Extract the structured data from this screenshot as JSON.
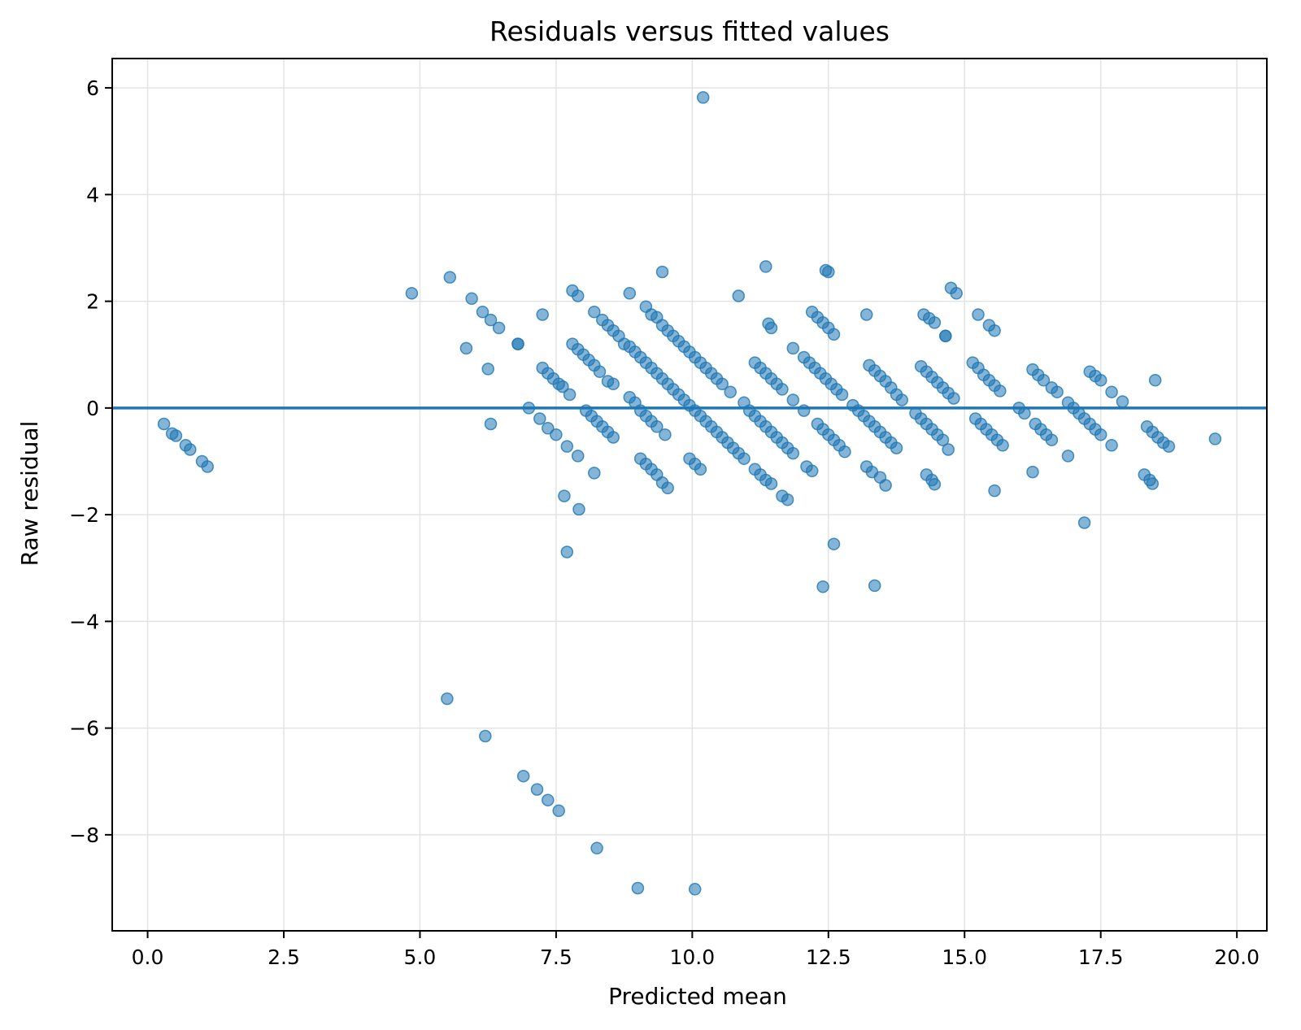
{
  "chart_data": {
    "type": "scatter",
    "title": "Residuals versus fitted values",
    "xlabel": "Predicted mean",
    "ylabel": "Raw residual",
    "xlim": [
      -0.65,
      20.55
    ],
    "ylim": [
      -9.8,
      6.55
    ],
    "x_ticks": [
      "0.0",
      "2.5",
      "5.0",
      "7.5",
      "10.0",
      "12.5",
      "15.0",
      "17.5",
      "20.0"
    ],
    "y_ticks": [
      "6",
      "4",
      "2",
      "0",
      "−2",
      "−4",
      "−6",
      "−8"
    ],
    "x_tick_values": [
      0,
      2.5,
      5,
      7.5,
      10,
      12.5,
      15,
      17.5,
      20
    ],
    "y_tick_values": [
      6,
      4,
      2,
      0,
      -2,
      -4,
      -6,
      -8
    ],
    "grid": true,
    "reference_line": {
      "y": 0,
      "color": "#1f77b4"
    },
    "marker_color": "#1f77b4",
    "marker_alpha": 0.55,
    "points": [
      [
        0.3,
        -0.3
      ],
      [
        0.45,
        -0.48
      ],
      [
        0.52,
        -0.52
      ],
      [
        0.7,
        -0.7
      ],
      [
        0.78,
        -0.78
      ],
      [
        1.0,
        -1.0
      ],
      [
        1.1,
        -1.1
      ],
      [
        4.85,
        2.15
      ],
      [
        5.55,
        2.45
      ],
      [
        5.85,
        1.12
      ],
      [
        5.95,
        2.05
      ],
      [
        6.15,
        1.8
      ],
      [
        6.3,
        1.65
      ],
      [
        6.45,
        1.5
      ],
      [
        6.25,
        0.73
      ],
      [
        6.3,
        -0.3
      ],
      [
        6.8,
        1.2
      ],
      [
        6.8,
        1.2
      ],
      [
        7.25,
        1.75
      ],
      [
        7.0,
        0.0
      ],
      [
        7.2,
        -0.2
      ],
      [
        7.35,
        -0.38
      ],
      [
        7.5,
        -0.5
      ],
      [
        7.7,
        -0.72
      ],
      [
        7.9,
        -0.9
      ],
      [
        7.25,
        0.75
      ],
      [
        7.35,
        0.65
      ],
      [
        7.45,
        0.55
      ],
      [
        7.55,
        0.45
      ],
      [
        7.62,
        0.4
      ],
      [
        7.75,
        0.25
      ],
      [
        7.65,
        -1.65
      ],
      [
        7.7,
        -2.7
      ],
      [
        7.92,
        -1.9
      ],
      [
        7.8,
        2.2
      ],
      [
        7.9,
        2.1
      ],
      [
        7.8,
        1.2
      ],
      [
        7.9,
        1.1
      ],
      [
        8.0,
        1.0
      ],
      [
        8.1,
        0.9
      ],
      [
        8.2,
        0.8
      ],
      [
        8.3,
        0.68
      ],
      [
        8.45,
        0.5
      ],
      [
        8.55,
        0.45
      ],
      [
        8.05,
        -0.05
      ],
      [
        8.15,
        -0.15
      ],
      [
        8.25,
        -0.25
      ],
      [
        8.35,
        -0.35
      ],
      [
        8.45,
        -0.45
      ],
      [
        8.55,
        -0.55
      ],
      [
        8.2,
        -1.22
      ],
      [
        8.2,
        1.8
      ],
      [
        8.35,
        1.65
      ],
      [
        8.45,
        1.55
      ],
      [
        8.55,
        1.45
      ],
      [
        8.65,
        1.35
      ],
      [
        8.75,
        1.2
      ],
      [
        8.85,
        1.15
      ],
      [
        8.95,
        1.05
      ],
      [
        9.05,
        0.95
      ],
      [
        9.15,
        0.85
      ],
      [
        8.85,
        2.15
      ],
      [
        8.85,
        0.2
      ],
      [
        8.95,
        0.1
      ],
      [
        9.05,
        -0.05
      ],
      [
        9.15,
        -0.15
      ],
      [
        9.25,
        -0.25
      ],
      [
        9.35,
        -0.35
      ],
      [
        9.5,
        -0.5
      ],
      [
        9.15,
        1.9
      ],
      [
        9.25,
        1.75
      ],
      [
        9.35,
        1.7
      ],
      [
        9.45,
        1.55
      ],
      [
        9.55,
        1.45
      ],
      [
        9.65,
        1.35
      ],
      [
        9.75,
        1.25
      ],
      [
        9.85,
        1.15
      ],
      [
        9.95,
        1.05
      ],
      [
        9.05,
        -0.95
      ],
      [
        9.15,
        -1.05
      ],
      [
        9.25,
        -1.15
      ],
      [
        9.35,
        -1.25
      ],
      [
        9.45,
        -1.4
      ],
      [
        9.55,
        -1.5
      ],
      [
        9.45,
        2.55
      ],
      [
        9.25,
        0.75
      ],
      [
        9.35,
        0.65
      ],
      [
        9.45,
        0.55
      ],
      [
        9.55,
        0.45
      ],
      [
        9.65,
        0.35
      ],
      [
        9.75,
        0.25
      ],
      [
        9.85,
        0.15
      ],
      [
        9.95,
        0.05
      ],
      [
        10.05,
        -0.05
      ],
      [
        10.15,
        -0.15
      ],
      [
        10.25,
        -0.25
      ],
      [
        10.35,
        -0.35
      ],
      [
        10.45,
        -0.45
      ],
      [
        10.55,
        -0.55
      ],
      [
        10.65,
        -0.65
      ],
      [
        10.75,
        -0.75
      ],
      [
        10.85,
        -0.85
      ],
      [
        10.95,
        -0.95
      ],
      [
        9.95,
        -0.95
      ],
      [
        10.05,
        -1.05
      ],
      [
        10.15,
        -1.15
      ],
      [
        10.2,
        5.82
      ],
      [
        10.05,
        0.95
      ],
      [
        10.15,
        0.85
      ],
      [
        10.25,
        0.75
      ],
      [
        10.35,
        0.65
      ],
      [
        10.45,
        0.55
      ],
      [
        10.55,
        0.45
      ],
      [
        10.7,
        0.3
      ],
      [
        10.85,
        2.1
      ],
      [
        10.95,
        0.1
      ],
      [
        11.05,
        -0.05
      ],
      [
        11.15,
        -0.15
      ],
      [
        11.25,
        -0.25
      ],
      [
        11.35,
        -0.35
      ],
      [
        11.45,
        -0.45
      ],
      [
        11.55,
        -0.55
      ],
      [
        11.65,
        -0.65
      ],
      [
        11.75,
        -0.75
      ],
      [
        11.85,
        -0.85
      ],
      [
        11.15,
        0.85
      ],
      [
        11.25,
        0.75
      ],
      [
        11.35,
        0.65
      ],
      [
        11.45,
        0.55
      ],
      [
        11.55,
        0.45
      ],
      [
        11.65,
        0.35
      ],
      [
        11.35,
        2.65
      ],
      [
        11.4,
        1.58
      ],
      [
        11.45,
        1.5
      ],
      [
        11.15,
        -1.15
      ],
      [
        11.25,
        -1.25
      ],
      [
        11.35,
        -1.35
      ],
      [
        11.45,
        -1.42
      ],
      [
        11.65,
        -1.65
      ],
      [
        11.75,
        -1.72
      ],
      [
        11.85,
        1.12
      ],
      [
        11.85,
        0.15
      ],
      [
        12.05,
        0.95
      ],
      [
        12.15,
        0.85
      ],
      [
        12.25,
        0.75
      ],
      [
        12.35,
        0.65
      ],
      [
        12.45,
        0.55
      ],
      [
        12.55,
        0.45
      ],
      [
        12.65,
        0.35
      ],
      [
        12.75,
        0.25
      ],
      [
        12.05,
        -0.05
      ],
      [
        12.2,
        1.8
      ],
      [
        12.3,
        1.7
      ],
      [
        12.4,
        1.6
      ],
      [
        12.5,
        1.5
      ],
      [
        12.6,
        1.38
      ],
      [
        12.45,
        2.58
      ],
      [
        12.5,
        2.55
      ],
      [
        12.1,
        -1.1
      ],
      [
        12.2,
        -1.18
      ],
      [
        12.3,
        -0.3
      ],
      [
        12.4,
        -0.4
      ],
      [
        12.5,
        -0.5
      ],
      [
        12.6,
        -0.6
      ],
      [
        12.7,
        -0.7
      ],
      [
        12.8,
        -0.82
      ],
      [
        12.4,
        -3.35
      ],
      [
        12.6,
        -2.55
      ],
      [
        12.95,
        0.05
      ],
      [
        13.05,
        -0.05
      ],
      [
        13.15,
        -0.15
      ],
      [
        13.25,
        -0.25
      ],
      [
        13.35,
        -0.35
      ],
      [
        13.45,
        -0.45
      ],
      [
        13.55,
        -0.55
      ],
      [
        13.65,
        -0.65
      ],
      [
        13.75,
        -0.75
      ],
      [
        13.2,
        1.75
      ],
      [
        13.25,
        0.8
      ],
      [
        13.35,
        0.7
      ],
      [
        13.45,
        0.6
      ],
      [
        13.55,
        0.5
      ],
      [
        13.65,
        0.38
      ],
      [
        13.75,
        0.25
      ],
      [
        13.85,
        0.15
      ],
      [
        13.2,
        -1.1
      ],
      [
        13.3,
        -1.2
      ],
      [
        13.45,
        -1.3
      ],
      [
        13.55,
        -1.45
      ],
      [
        13.35,
        -3.33
      ],
      [
        14.1,
        -0.1
      ],
      [
        14.2,
        -0.2
      ],
      [
        14.3,
        -0.3
      ],
      [
        14.4,
        -0.4
      ],
      [
        14.5,
        -0.5
      ],
      [
        14.6,
        -0.6
      ],
      [
        14.7,
        -0.78
      ],
      [
        14.2,
        0.78
      ],
      [
        14.3,
        0.68
      ],
      [
        14.4,
        0.58
      ],
      [
        14.5,
        0.48
      ],
      [
        14.6,
        0.38
      ],
      [
        14.7,
        0.28
      ],
      [
        14.8,
        0.18
      ],
      [
        14.25,
        1.75
      ],
      [
        14.35,
        1.68
      ],
      [
        14.45,
        1.6
      ],
      [
        14.65,
        1.35
      ],
      [
        14.65,
        1.35
      ],
      [
        14.75,
        2.25
      ],
      [
        14.85,
        2.15
      ],
      [
        14.3,
        -1.25
      ],
      [
        14.4,
        -1.35
      ],
      [
        14.45,
        -1.43
      ],
      [
        15.15,
        0.85
      ],
      [
        15.25,
        0.75
      ],
      [
        15.35,
        0.62
      ],
      [
        15.45,
        0.52
      ],
      [
        15.55,
        0.42
      ],
      [
        15.65,
        0.32
      ],
      [
        15.25,
        1.75
      ],
      [
        15.45,
        1.55
      ],
      [
        15.55,
        1.45
      ],
      [
        15.2,
        -0.2
      ],
      [
        15.3,
        -0.3
      ],
      [
        15.4,
        -0.4
      ],
      [
        15.5,
        -0.5
      ],
      [
        15.6,
        -0.6
      ],
      [
        15.7,
        -0.7
      ],
      [
        15.55,
        -1.55
      ],
      [
        16.0,
        0.0
      ],
      [
        16.1,
        -0.1
      ],
      [
        16.25,
        0.72
      ],
      [
        16.35,
        0.62
      ],
      [
        16.45,
        0.52
      ],
      [
        16.6,
        0.38
      ],
      [
        16.7,
        0.3
      ],
      [
        16.3,
        -0.3
      ],
      [
        16.4,
        -0.4
      ],
      [
        16.5,
        -0.5
      ],
      [
        16.6,
        -0.6
      ],
      [
        16.25,
        -1.2
      ],
      [
        16.9,
        0.1
      ],
      [
        17.0,
        0.0
      ],
      [
        17.1,
        -0.1
      ],
      [
        17.2,
        -0.2
      ],
      [
        17.3,
        -0.3
      ],
      [
        17.4,
        -0.4
      ],
      [
        17.5,
        -0.5
      ],
      [
        17.7,
        -0.7
      ],
      [
        16.9,
        -0.9
      ],
      [
        17.2,
        -2.15
      ],
      [
        17.3,
        0.68
      ],
      [
        17.4,
        0.6
      ],
      [
        17.5,
        0.52
      ],
      [
        17.7,
        0.3
      ],
      [
        17.9,
        0.12
      ],
      [
        18.3,
        -1.25
      ],
      [
        18.4,
        -1.35
      ],
      [
        18.45,
        -1.42
      ],
      [
        18.35,
        -0.35
      ],
      [
        18.45,
        -0.45
      ],
      [
        18.55,
        -0.55
      ],
      [
        18.65,
        -0.65
      ],
      [
        18.75,
        -0.72
      ],
      [
        18.5,
        0.52
      ],
      [
        19.6,
        -0.58
      ],
      [
        5.5,
        -5.45
      ],
      [
        6.2,
        -6.15
      ],
      [
        6.9,
        -6.9
      ],
      [
        7.15,
        -7.15
      ],
      [
        7.35,
        -7.35
      ],
      [
        7.55,
        -7.55
      ],
      [
        8.25,
        -8.25
      ],
      [
        9.0,
        -9.0
      ],
      [
        10.05,
        -9.02
      ]
    ]
  }
}
